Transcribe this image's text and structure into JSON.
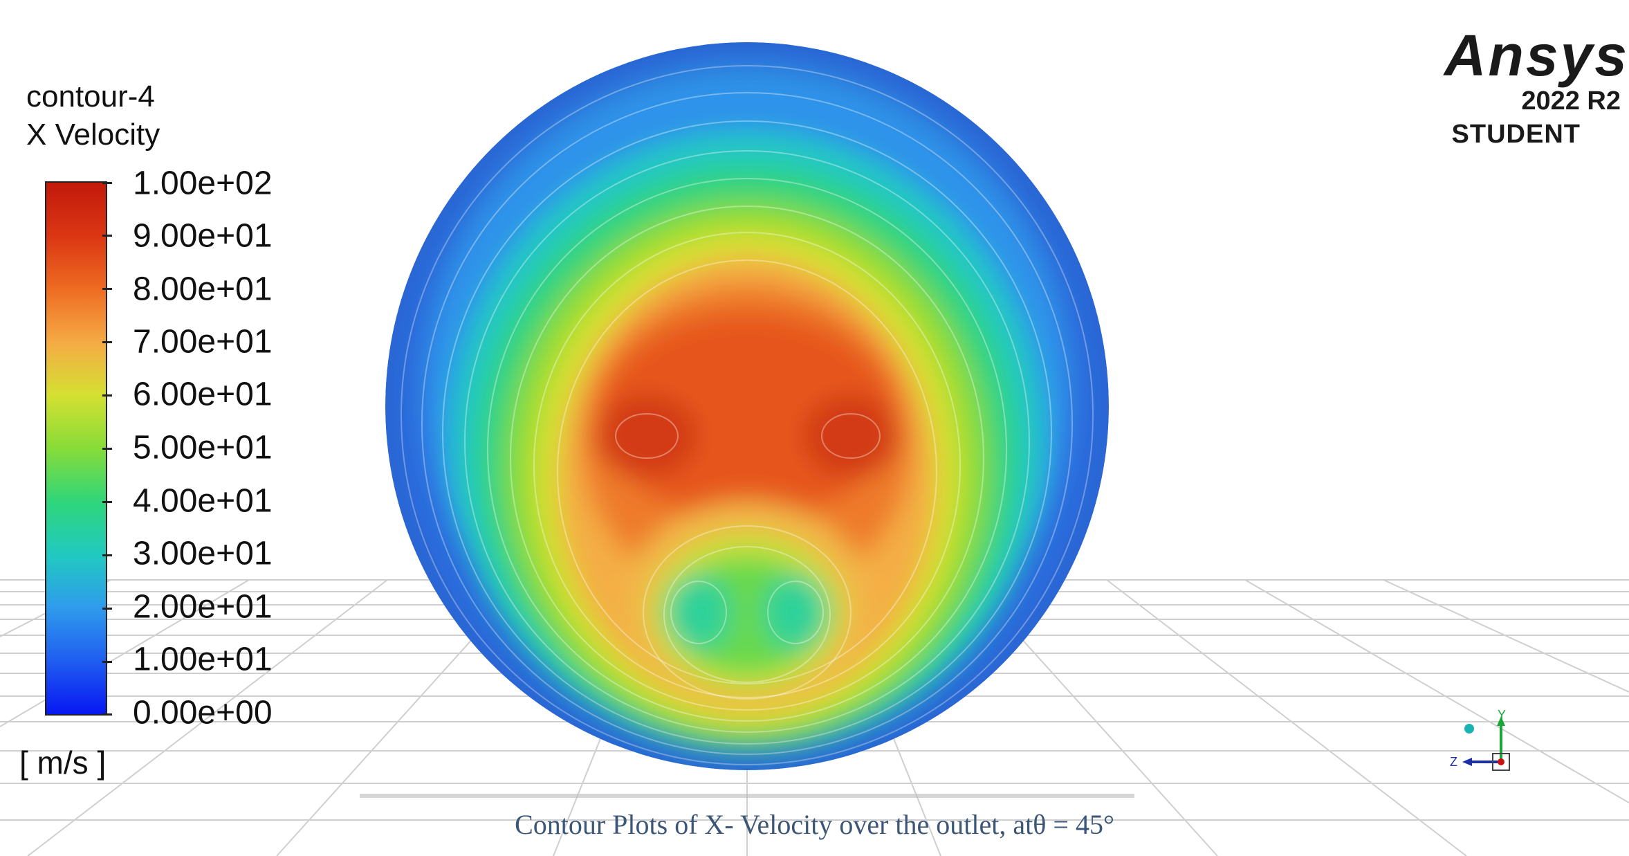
{
  "legend": {
    "title": "contour-4",
    "variable": "X Velocity",
    "units": "[ m/s ]",
    "ticks": [
      "1.00e+02",
      "9.00e+01",
      "8.00e+01",
      "7.00e+01",
      "6.00e+01",
      "5.00e+01",
      "4.00e+01",
      "3.00e+01",
      "2.00e+01",
      "1.00e+01",
      "0.00e+00"
    ],
    "range": [
      0,
      100
    ],
    "colors": [
      "#0a17f0",
      "#2f86f0",
      "#22c9b0",
      "#35d65a",
      "#a6de2c",
      "#e7e23a",
      "#f7b144",
      "#ef6e26",
      "#d93614",
      "#c3190a"
    ]
  },
  "brand": {
    "name": "Ansys",
    "version": "2022 R2",
    "edition": "STUDENT"
  },
  "axes": {
    "y_label": "Y",
    "z_label": "Z"
  },
  "caption": "Contour Plots of X- Velocity over the outlet, atθ = 45°"
}
